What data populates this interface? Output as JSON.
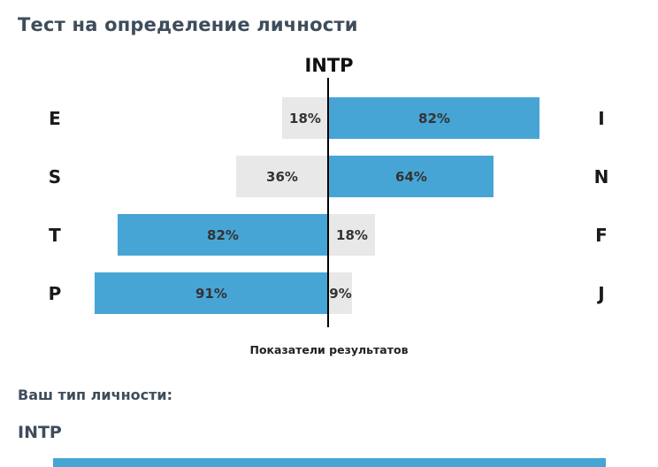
{
  "page": {
    "title": "Тест на определение личности",
    "result_label": "Ваш тип личности:",
    "result_value": "INTP"
  },
  "chart_data": {
    "type": "bar",
    "title": "INTP",
    "xlabel": "Показатели результатов",
    "orientation": "horizontal-diverging",
    "rows": [
      {
        "left_label": "E",
        "right_label": "I",
        "left_value": 18,
        "right_value": 82
      },
      {
        "left_label": "S",
        "right_label": "N",
        "left_value": 36,
        "right_value": 64
      },
      {
        "left_label": "T",
        "right_label": "F",
        "left_value": 82,
        "right_value": 18
      },
      {
        "left_label": "P",
        "right_label": "J",
        "left_value": 91,
        "right_value": 9
      }
    ],
    "colors": {
      "dominant": "#47a5d6",
      "recessive": "#e8e8e8",
      "axis_line": "#000000"
    }
  }
}
